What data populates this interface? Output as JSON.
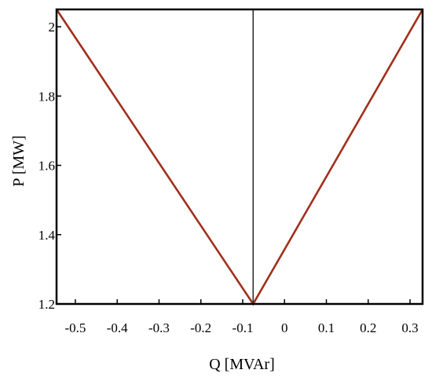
{
  "chart_data": {
    "type": "line",
    "title": "",
    "xlabel": "Q [MVAr]",
    "ylabel": "P [MW]",
    "xlim": [
      -0.545,
      0.33
    ],
    "ylim": [
      1.2,
      2.05
    ],
    "x_ticks": [
      -0.5,
      -0.4,
      -0.3,
      -0.2,
      -0.1,
      0,
      0.1,
      0.2,
      0.3
    ],
    "x_tick_labels": [
      "-0.5",
      "-0.4",
      "-0.3",
      "-0.2",
      "-0.1",
      "0",
      "0.1",
      "0.2",
      "0.3"
    ],
    "y_ticks": [
      1.2,
      1.4,
      1.6,
      1.8,
      2.0
    ],
    "y_tick_labels": [
      "1.2",
      "1.4",
      "1.6",
      "1.8",
      "2"
    ],
    "grid": false,
    "legend": "none",
    "series": [
      {
        "color": "#a0301c",
        "points": [
          [
            -0.545,
            2.05
          ],
          [
            -0.075,
            1.2
          ],
          [
            0.33,
            2.05
          ]
        ]
      },
      {
        "color": "#2f2f2f",
        "points": [
          [
            -0.075,
            1.2
          ],
          [
            -0.075,
            2.05
          ]
        ]
      }
    ]
  }
}
